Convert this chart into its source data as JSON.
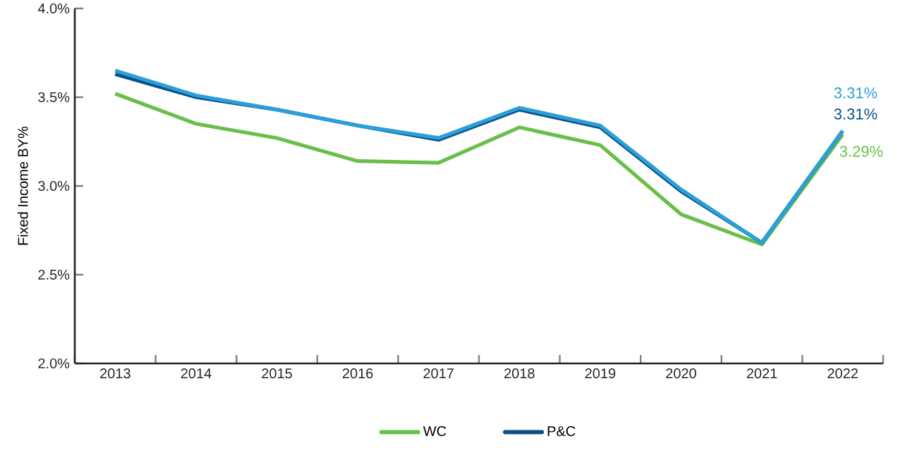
{
  "chart_data": {
    "type": "line",
    "ylabel": "Fixed Income BY%",
    "categories": [
      "2013",
      "2014",
      "2015",
      "2016",
      "2017",
      "2018",
      "2019",
      "2020",
      "2021",
      "2022"
    ],
    "series": [
      {
        "name": "WC",
        "color": "#6abf4b",
        "values": [
          3.52,
          3.35,
          3.27,
          3.14,
          3.13,
          3.33,
          3.23,
          2.84,
          2.67,
          3.29
        ],
        "value_labels": [
          null,
          null,
          null,
          null,
          null,
          null,
          null,
          null,
          null,
          "3.29%"
        ]
      },
      {
        "name": "P&C",
        "color": "#0a4f86",
        "values": [
          3.63,
          3.5,
          3.43,
          3.34,
          3.26,
          3.43,
          3.33,
          2.97,
          2.68,
          3.31
        ],
        "value_labels": [
          null,
          null,
          null,
          null,
          null,
          null,
          null,
          null,
          null,
          "3.31%"
        ]
      },
      {
        "color": "#2a9fd8",
        "values": [
          3.65,
          3.51,
          3.43,
          3.34,
          3.27,
          3.44,
          3.34,
          2.98,
          2.68,
          3.31
        ],
        "value_labels": [
          null,
          null,
          null,
          null,
          null,
          null,
          null,
          null,
          null,
          "3.31%"
        ]
      }
    ],
    "ylim": [
      2.0,
      4.0
    ],
    "yticks": [
      {
        "value": 2.0,
        "label": "2.0%"
      },
      {
        "value": 2.5,
        "label": "2.5%"
      },
      {
        "value": 3.0,
        "label": "3.0%"
      },
      {
        "value": 3.5,
        "label": "3.5%"
      },
      {
        "value": 4.0,
        "label": "4.0%"
      }
    ],
    "grid": false,
    "legend": "bottom",
    "marker": "none",
    "line_style": "solid"
  }
}
